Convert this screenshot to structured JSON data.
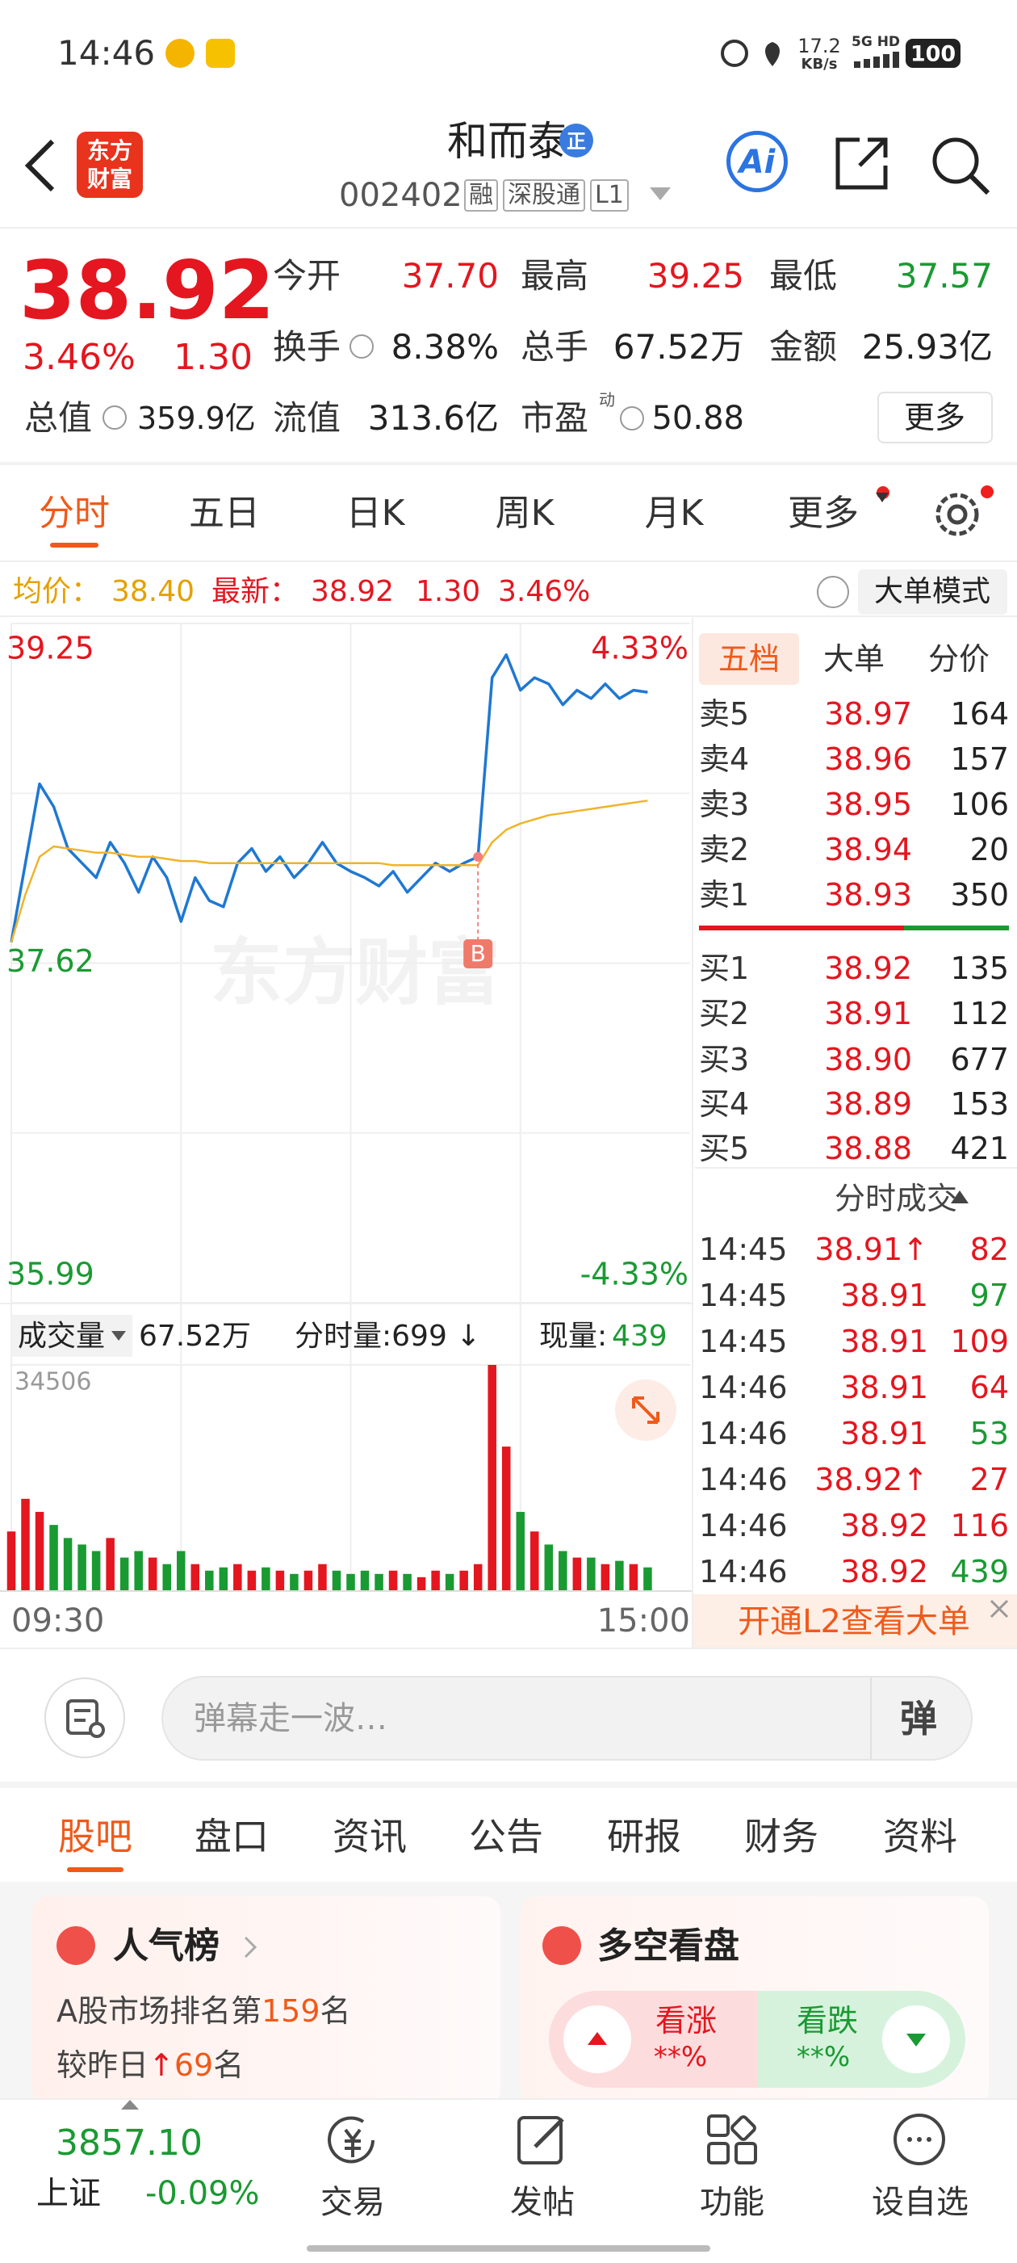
{
  "status_bar": {
    "time": "14:46",
    "net_speed": "17.2",
    "net_unit": "KB/s",
    "network": "5G HD",
    "battery": "100"
  },
  "header": {
    "logo": [
      "东方",
      "财富"
    ],
    "title": "和而泰",
    "badge": "正",
    "code": "002402",
    "tags": [
      "融",
      "深股通",
      "L1"
    ],
    "ai": "Ai"
  },
  "quote": {
    "price": "38.92",
    "change_pct": "3.46%",
    "change": "1.30",
    "total_value": {
      "label": "总值",
      "value": "359.9亿"
    },
    "open": {
      "label": "今开",
      "value": "37.70"
    },
    "high": {
      "label": "最高",
      "value": "39.25"
    },
    "low": {
      "label": "最低",
      "value": "37.57"
    },
    "turnover": {
      "label": "换手",
      "value": "8.38%"
    },
    "volume": {
      "label": "总手",
      "value": "67.52万"
    },
    "amount": {
      "label": "金额",
      "value": "25.93亿"
    },
    "float_value": {
      "label": "流值",
      "value": "313.6亿"
    },
    "pe": {
      "label": "市盈",
      "sup": "动",
      "value": "50.88"
    },
    "more": "更多"
  },
  "tabs": {
    "items": [
      "分时",
      "五日",
      "日K",
      "周K",
      "月K",
      "更多"
    ],
    "active": 0
  },
  "info_bar": {
    "avg_label": "均价：",
    "avg": "38.40",
    "latest_label": "最新：",
    "latest": "38.92",
    "change": "1.30",
    "change_pct": "3.46%",
    "mode": "大单模式"
  },
  "chart_data": [
    {
      "type": "line",
      "watermark": "东方财富",
      "grid": true,
      "marker": {
        "label": "B"
      },
      "categories": [
        "09:30",
        null,
        null,
        null,
        null,
        null,
        null,
        null,
        null,
        null,
        null,
        null,
        null,
        null,
        null,
        null,
        null,
        null,
        null,
        null,
        null,
        null,
        null,
        null,
        null,
        null,
        null,
        null,
        null,
        null,
        null,
        null,
        null,
        null,
        null,
        null,
        null,
        null,
        null,
        null,
        null,
        null,
        null,
        null,
        null,
        null,
        null,
        null,
        "15:00"
      ],
      "series": [
        {
          "color": "#1f78d1",
          "values": [
            37.72,
            38.1,
            38.48,
            38.37,
            38.17,
            38.1,
            38.03,
            38.2,
            38.1,
            37.96,
            38.13,
            38.03,
            37.82,
            38.03,
            37.92,
            37.89,
            38.1,
            38.17,
            38.06,
            38.13,
            38.03,
            38.1,
            38.2,
            38.1,
            38.06,
            38.03,
            37.99,
            38.06,
            37.96,
            38.03,
            38.1,
            38.06,
            38.1,
            38.13,
            38.99,
            39.1,
            38.93,
            38.99,
            38.96,
            38.86,
            38.93,
            38.89,
            38.96,
            38.89,
            38.93,
            38.92,
            null,
            null,
            null
          ]
        },
        {
          "color": "#f0b429",
          "values": [
            37.72,
            37.95,
            38.13,
            38.18,
            38.17,
            38.16,
            38.15,
            38.15,
            38.14,
            38.13,
            38.13,
            38.12,
            38.11,
            38.11,
            38.1,
            38.1,
            38.1,
            38.1,
            38.1,
            38.1,
            38.1,
            38.1,
            38.1,
            38.1,
            38.1,
            38.1,
            38.1,
            38.09,
            38.09,
            38.09,
            38.09,
            38.09,
            38.09,
            38.09,
            38.2,
            38.26,
            38.29,
            38.31,
            38.33,
            38.34,
            38.35,
            38.36,
            38.37,
            38.38,
            38.39,
            38.4,
            null,
            null,
            null
          ]
        }
      ],
      "ylim": [
        35.99,
        39.25
      ],
      "yticks": [
        35.99,
        37.62,
        39.25
      ],
      "y2lim": [
        -4.33,
        4.33
      ],
      "y2ticks": [
        {
          "value": -4.33,
          "label": "-4.33%"
        },
        {
          "value": 4.33,
          "label": "4.33%"
        }
      ]
    },
    {
      "type": "bar",
      "title": "成交量",
      "total": "67.52万",
      "period": "分时量:699 ↓",
      "current_label": "现量:",
      "current": "439",
      "up_color": "#e4161f",
      "down_color": "#1a9a32",
      "values": [
        9000,
        14000,
        12000,
        10000,
        8000,
        7000,
        6000,
        8000,
        5000,
        6000,
        5000,
        4000,
        6000,
        4000,
        3000,
        3500,
        4000,
        3000,
        3500,
        3000,
        2500,
        3000,
        4000,
        3000,
        2500,
        3000,
        2500,
        3000,
        2500,
        2000,
        3000,
        2500,
        3000,
        4000,
        34506,
        22000,
        12000,
        9000,
        7000,
        6000,
        5000,
        5000,
        4000,
        4500,
        4000,
        3500,
        null,
        null,
        null
      ],
      "ylim": [
        0,
        34506
      ],
      "yticks": [
        34506
      ]
    }
  ],
  "order_book": {
    "tabs": [
      "五档",
      "大单",
      "分价"
    ],
    "asks": [
      {
        "label": "卖5",
        "price": "38.97",
        "volume": "164"
      },
      {
        "label": "卖4",
        "price": "38.96",
        "volume": "157"
      },
      {
        "label": "卖3",
        "price": "38.95",
        "volume": "106"
      },
      {
        "label": "卖2",
        "price": "38.94",
        "volume": "20"
      },
      {
        "label": "卖1",
        "price": "38.93",
        "volume": "350"
      }
    ],
    "bids": [
      {
        "label": "买1",
        "price": "38.92",
        "volume": "135"
      },
      {
        "label": "买2",
        "price": "38.91",
        "volume": "112"
      },
      {
        "label": "买3",
        "price": "38.90",
        "volume": "677"
      },
      {
        "label": "买4",
        "price": "38.89",
        "volume": "153"
      },
      {
        "label": "买5",
        "price": "38.88",
        "volume": "421"
      }
    ],
    "trades_title": "分时成交",
    "trades": [
      {
        "time": "14:45",
        "price": "38.91↑",
        "volume": "82",
        "color": "#e4161f"
      },
      {
        "time": "14:45",
        "price": "38.91",
        "volume": "97",
        "color": "#1a9a32"
      },
      {
        "time": "14:45",
        "price": "38.91",
        "volume": "109",
        "color": "#e4161f"
      },
      {
        "time": "14:46",
        "price": "38.91",
        "volume": "64",
        "color": "#e4161f"
      },
      {
        "time": "14:46",
        "price": "38.91",
        "volume": "53",
        "color": "#1a9a32"
      },
      {
        "time": "14:46",
        "price": "38.92↑",
        "volume": "27",
        "color": "#e4161f"
      },
      {
        "time": "14:46",
        "price": "38.92",
        "volume": "116",
        "color": "#e4161f"
      },
      {
        "time": "14:46",
        "price": "38.92",
        "volume": "439",
        "color": "#1a9a32"
      }
    ],
    "l2_promo": "开通L2查看大单"
  },
  "danmu": {
    "placeholder": "弹幕走一波…",
    "button": "弹"
  },
  "content_tabs": {
    "items": [
      "股吧",
      "盘口",
      "资讯",
      "公告",
      "研报",
      "财务",
      "资料"
    ],
    "active": 0
  },
  "cards": {
    "popularity": {
      "title": "人气榜",
      "rank_prefix": "A股市场排名第",
      "rank": "159",
      "rank_suffix": "名",
      "change_prefix": "较昨日",
      "change_arrow": "↑",
      "change": "69",
      "change_suffix": "名"
    },
    "sentiment": {
      "title": "多空看盘",
      "bull": "看涨",
      "bull_pct": "**%",
      "bear": "看跌",
      "bear_pct": "**%"
    }
  },
  "bottom_nav": {
    "index_value": "3857.10",
    "index_name": "上证",
    "index_change": "-0.09%",
    "items": [
      "交易",
      "发帖",
      "功能",
      "设自选"
    ]
  }
}
